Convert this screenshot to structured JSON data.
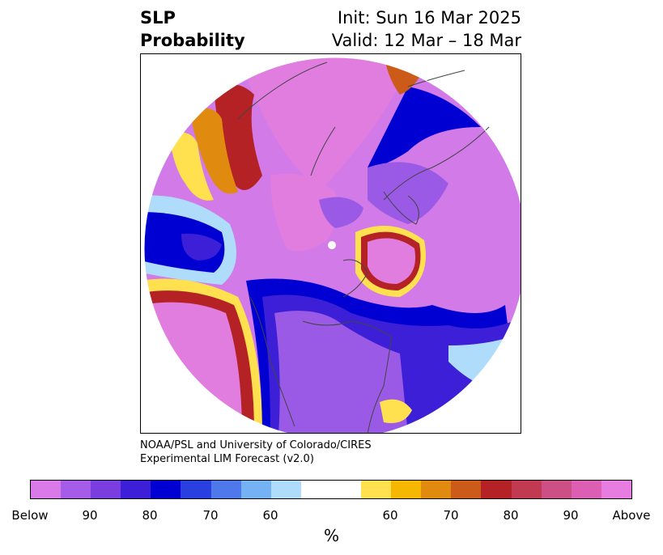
{
  "title": {
    "left_line1": "SLP",
    "left_line2": "Probability",
    "right_line1": "Init: Sun 16 Mar 2025",
    "right_line2": "Valid: 12 Mar – 18 Mar"
  },
  "credit": {
    "line1": "NOAA/PSL and University of Colorado/CIRES",
    "line2": "Experimental LIM Forecast (v2.0)"
  },
  "colorbar": {
    "label": "%",
    "ticks": [
      "Below",
      "90",
      "80",
      "70",
      "60",
      "60",
      "70",
      "80",
      "90",
      "Above"
    ],
    "colors": [
      "#d97ae8",
      "#a55ce8",
      "#7a3ee0",
      "#3c1fd6",
      "#0000d2",
      "#2a3fe0",
      "#4f78ea",
      "#74b2f4",
      "#aedcfa",
      "#ffffff",
      "#ffe04f",
      "#f5b700",
      "#e08a0f",
      "#cc5a18",
      "#b52226",
      "#c23a52",
      "#cc4f86",
      "#dd5fb4",
      "#e77de0"
    ]
  },
  "map": {
    "projection": "north-polar-stereographic",
    "palette": {
      "above": "#e07ddf",
      "above_mid": "#dd5fb4",
      "above_red": "#b52226",
      "above_orange": "#e08a0f",
      "above_yellow": "#ffe04f",
      "below": "#d17ae8",
      "below_mid": "#9b5ae6",
      "below_deep": "#3c1fd6",
      "below_blue": "#0000d2",
      "below_light": "#aedcfa",
      "coast": "#444444"
    }
  }
}
